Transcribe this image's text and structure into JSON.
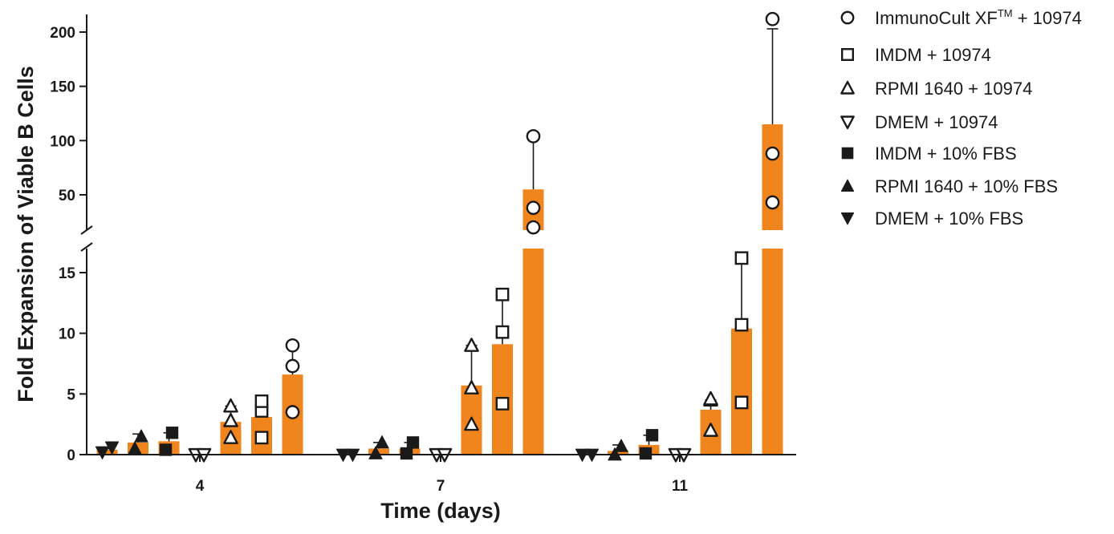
{
  "chart_data": {
    "type": "bar",
    "xlabel": "Time (days)",
    "ylabel": "Fold Expansion of Viable B Cells",
    "y_axis": "broken",
    "y_lower_range": [
      0,
      17
    ],
    "y_upper_range": [
      15,
      215
    ],
    "y_lower_ticks": [
      0,
      5,
      10,
      15
    ],
    "y_upper_ticks": [
      50,
      100,
      150,
      200
    ],
    "categories": [
      "4",
      "7",
      "11"
    ],
    "bar_color": "#F0851E",
    "series": [
      {
        "name": "DMEM + 10% FBS",
        "marker": "triangle-down-filled",
        "means": [
          0.4,
          0.0,
          0.0
        ],
        "errors": [
          0.1,
          0.0,
          0.0
        ],
        "points": [
          [
            0.2,
            0.6
          ],
          [
            0.0,
            0.0
          ],
          [
            0.0,
            0.0
          ]
        ]
      },
      {
        "name": "RPMI 1640 + 10% FBS",
        "marker": "triangle-up-filled",
        "means": [
          1.0,
          0.5,
          0.3
        ],
        "errors": [
          0.7,
          0.5,
          0.5
        ],
        "points": [
          [
            0.5,
            1.5
          ],
          [
            0.1,
            1.0
          ],
          [
            0.0,
            0.7
          ]
        ]
      },
      {
        "name": "IMDM + 10% FBS",
        "marker": "square-filled",
        "means": [
          1.1,
          0.5,
          0.8
        ],
        "errors": [
          0.7,
          0.5,
          0.8
        ],
        "points": [
          [
            0.4,
            1.8
          ],
          [
            0.1,
            1.0
          ],
          [
            0.1,
            1.6
          ]
        ]
      },
      {
        "name": "DMEM + 10974",
        "marker": "triangle-down-open",
        "means": [
          0.0,
          0.0,
          0.0
        ],
        "errors": [
          0.0,
          0.0,
          0.0
        ],
        "points": [
          [
            0.0,
            0.0
          ],
          [
            0.0,
            0.0
          ],
          [
            0.0,
            0.0
          ]
        ]
      },
      {
        "name": "RPMI 1640 + 10974",
        "marker": "triangle-up-open",
        "means": [
          2.7,
          5.7,
          3.7
        ],
        "errors": [
          1.3,
          3.3,
          0.8
        ],
        "points": [
          [
            1.4,
            2.8,
            4.0
          ],
          [
            2.5,
            5.5,
            9.0
          ],
          [
            2.0,
            4.5,
            4.6
          ]
        ]
      },
      {
        "name": "IMDM + 10974",
        "marker": "square-open",
        "means": [
          3.1,
          9.1,
          10.4
        ],
        "errors": [
          1.3,
          4.1,
          5.8
        ],
        "points": [
          [
            1.4,
            3.6,
            4.4
          ],
          [
            4.2,
            10.1,
            13.2
          ],
          [
            4.3,
            10.7,
            16.2
          ]
        ]
      },
      {
        "name": "ImmunoCult XF™ + 10974",
        "marker": "circle-open",
        "means": [
          6.6,
          55,
          115
        ],
        "errors": [
          2.4,
          50,
          88
        ],
        "points": [
          [
            3.5,
            7.3,
            9.0
          ],
          [
            20,
            38,
            104
          ],
          [
            43,
            88,
            212
          ]
        ]
      }
    ],
    "legend_position": "top-right",
    "legend": [
      {
        "label": "ImmunoCult XF",
        "sup": "TM",
        "rest": " + 10974",
        "marker": "circle-open"
      },
      {
        "label": "IMDM + 10974",
        "marker": "square-open"
      },
      {
        "label": "RPMI 1640 + 10974",
        "marker": "triangle-up-open"
      },
      {
        "label": "DMEM + 10974",
        "marker": "triangle-down-open"
      },
      {
        "label": "IMDM + 10% FBS",
        "marker": "square-filled"
      },
      {
        "label": "RPMI 1640 + 10% FBS",
        "marker": "triangle-up-filled"
      },
      {
        "label": "DMEM + 10% FBS",
        "marker": "triangle-down-filled"
      }
    ]
  }
}
